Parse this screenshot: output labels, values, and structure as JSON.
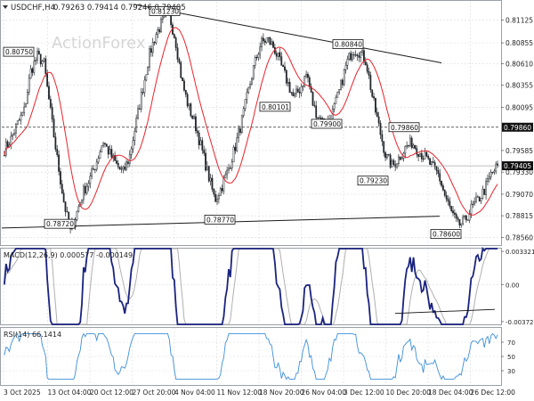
{
  "header": {
    "symbol_label": "USDCHF,H4",
    "ohlc_label": "0.79263 0.79414 0.79246 0.79405",
    "watermark": "ActionForex"
  },
  "panels": {
    "macd_label": "MACD(12,26,9) 0.000577 -0.000149",
    "rsi_label": "RSI(14) 66.1414"
  },
  "colors": {
    "candle_up": "#22262b",
    "candle_down": "#22262b",
    "ma_line": "#e8222a",
    "macd_line": "#1a237e",
    "signal_line": "#b0b0b0",
    "rsi_line": "#3d8fd8",
    "trendline": "#1a1a1a",
    "grid": "#d9dbe0"
  },
  "chart_data": [
    {
      "type": "candlestick",
      "name": "USDCHF H4 price",
      "x_tick_labels": [
        "3 Oct 2025",
        "13 Oct 04:00",
        "20 Oct 12:00",
        "27 Oct 20:00",
        "4 Nov 04:00",
        "11 Nov 12:00",
        "18 Nov 20:00",
        "26 Nov 04:00",
        "3 Dec 12:00",
        "10 Dec 20:00",
        "18 Dec 04:00",
        "26 Dec 12:00"
      ],
      "y_tick_labels": [
        "0.81125",
        "0.80855",
        "0.80610",
        "0.80355",
        "0.80095",
        "0.79585",
        "0.79330",
        "0.79070",
        "0.78815",
        "0.78560"
      ],
      "ylim": [
        0.7848,
        0.8134
      ],
      "current_price": "0.79405",
      "horizontal_level": "0.79860",
      "annotations": [
        {
          "label": "0.80750",
          "value": 0.8075
        },
        {
          "label": "0.81230",
          "value": 0.8123
        },
        {
          "label": "0.80101",
          "value": 0.80101
        },
        {
          "label": "0.80840",
          "value": 0.8084
        },
        {
          "label": "0.79900",
          "value": 0.799
        },
        {
          "label": "0.79860",
          "value": 0.7986
        },
        {
          "label": "0.79230",
          "value": 0.7923
        },
        {
          "label": "0.78720",
          "value": 0.7872
        },
        {
          "label": "0.78770",
          "value": 0.7877
        },
        {
          "label": "0.78600",
          "value": 0.786
        }
      ],
      "close_path": [
        0.796,
        0.7972,
        0.799,
        0.8005,
        0.8052,
        0.807,
        0.8062,
        0.8005,
        0.795,
        0.79,
        0.7862,
        0.7885,
        0.791,
        0.7925,
        0.7945,
        0.797,
        0.7955,
        0.7942,
        0.7932,
        0.795,
        0.799,
        0.803,
        0.807,
        0.8095,
        0.811,
        0.812,
        0.809,
        0.804,
        0.801,
        0.799,
        0.796,
        0.793,
        0.79,
        0.7915,
        0.7935,
        0.796,
        0.799,
        0.8025,
        0.806,
        0.8085,
        0.809,
        0.808,
        0.806,
        0.804,
        0.802,
        0.8032,
        0.805,
        0.801,
        0.7995,
        0.799,
        0.8005,
        0.803,
        0.806,
        0.8078,
        0.8075,
        0.8064,
        0.802,
        0.7985,
        0.7952,
        0.794,
        0.795,
        0.7962,
        0.7968,
        0.7958,
        0.795,
        0.794,
        0.793,
        0.7905,
        0.7885,
        0.787,
        0.7875,
        0.789,
        0.79,
        0.7912,
        0.793,
        0.794
      ]
    },
    {
      "type": "line",
      "name": "MACD",
      "y_tick_labels": [
        "0.003321",
        "0.00",
        "-0.003723"
      ],
      "ylim": [
        -0.004,
        0.0036
      ]
    },
    {
      "type": "line",
      "name": "RSI",
      "y_tick_labels": [
        "70",
        "50",
        "30"
      ],
      "ylim": [
        10,
        90
      ]
    }
  ]
}
